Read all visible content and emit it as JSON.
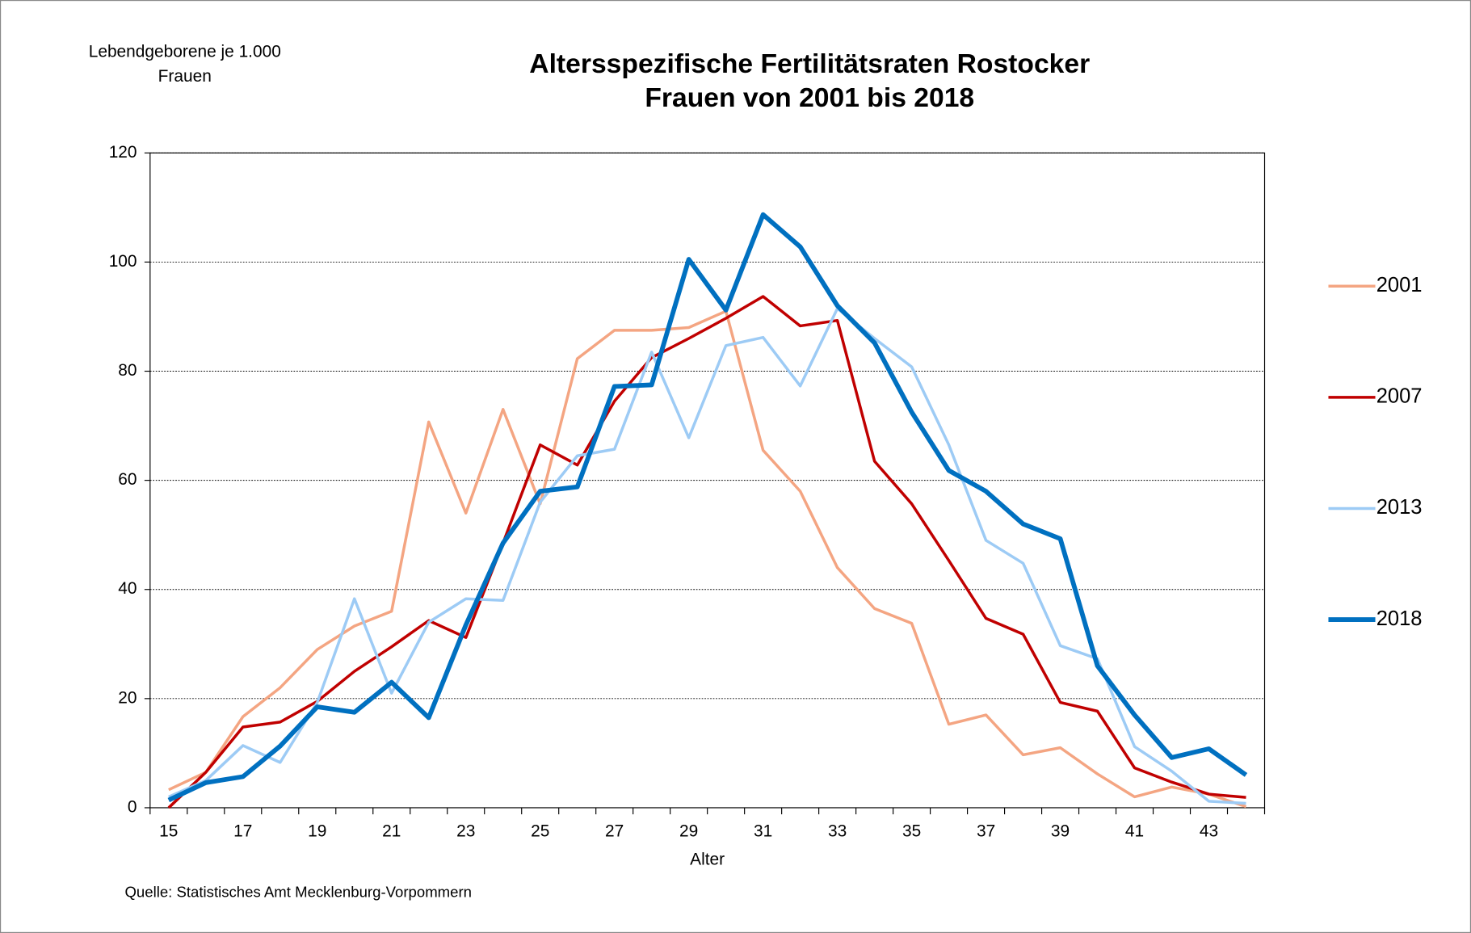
{
  "chart_data": {
    "type": "line",
    "title": [
      "Altersspezifische Fertilitätsraten Rostocker",
      "Frauen von 2001 bis 2018"
    ],
    "y_axis_label": [
      "Lebendgeborene je 1.000",
      "Frauen"
    ],
    "x_axis_label": "Alter",
    "source": "Quelle: Statistisches Amt Mecklenburg-Vorpommern",
    "categories": [
      15,
      null,
      17,
      null,
      19,
      null,
      21,
      null,
      23,
      null,
      25,
      null,
      27,
      null,
      29,
      null,
      31,
      null,
      33,
      null,
      35,
      null,
      37,
      null,
      39,
      null,
      41,
      null,
      43,
      null
    ],
    "ylim": [
      0,
      120
    ],
    "yticks": [
      0,
      20,
      40,
      60,
      80,
      100,
      120
    ],
    "grid": true,
    "legend": "right",
    "series": [
      {
        "name": "2001",
        "color": "#f4a582",
        "width": 3,
        "values": [
          3.3,
          6.5,
          16.7,
          22,
          29,
          33.3,
          36,
          70.7,
          54,
          73,
          55.7,
          82.3,
          87.5,
          87.5,
          88,
          91,
          65.5,
          58,
          44,
          36.5,
          33.8,
          15.3,
          17,
          9.7,
          11,
          6.2,
          2,
          3.8,
          2.5,
          0.2
        ]
      },
      {
        "name": "2007",
        "color": "#c00000",
        "width": 3,
        "values": [
          0,
          6.5,
          14.8,
          15.7,
          19.5,
          25,
          29.5,
          34.3,
          31.2,
          48.5,
          66.5,
          62.8,
          74.5,
          82.5,
          86,
          89.7,
          93.7,
          88.3,
          89.3,
          63.5,
          55.7,
          45.3,
          34.7,
          31.8,
          19.3,
          17.7,
          7.3,
          4.7,
          2.5,
          1.9
        ]
      },
      {
        "name": "2013",
        "color": "#9dcbf5",
        "width": 3,
        "values": [
          2,
          5,
          11.4,
          8.3,
          19.3,
          38.3,
          21,
          34,
          38.3,
          38,
          56,
          64.5,
          65.7,
          83.5,
          67.8,
          84.7,
          86.2,
          77.3,
          91.5,
          86,
          80.8,
          66.5,
          49,
          44.8,
          29.7,
          27.3,
          11.2,
          6.7,
          1.2,
          0.8
        ]
      },
      {
        "name": "2018",
        "color": "#0070c0",
        "width": 5,
        "values": [
          1.4,
          4.6,
          5.7,
          11.3,
          18.5,
          17.5,
          23,
          16.5,
          33.5,
          48.5,
          58,
          58.8,
          77.2,
          77.5,
          100.5,
          91.2,
          108.7,
          102.8,
          92,
          85.2,
          72.5,
          61.8,
          58,
          52,
          49.3,
          26,
          17,
          9.2,
          10.8,
          6
        ]
      }
    ]
  }
}
